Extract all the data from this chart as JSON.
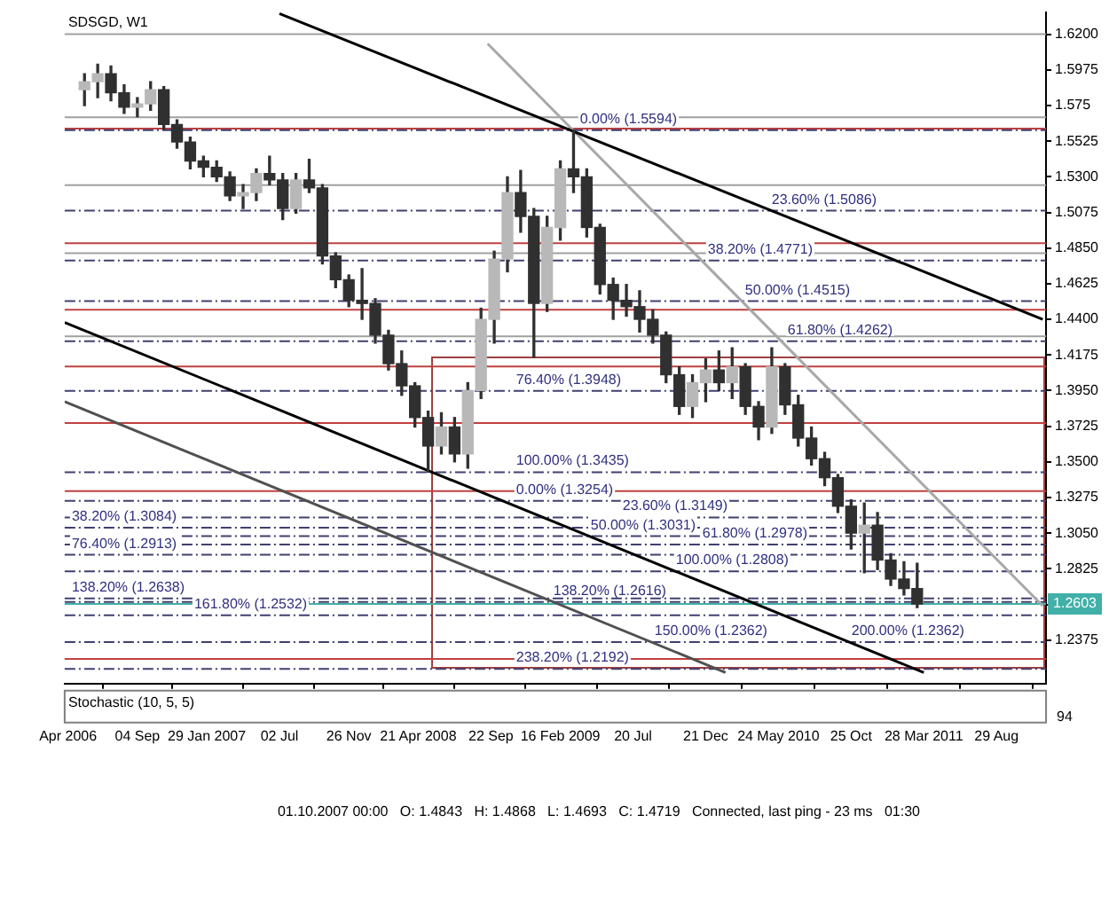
{
  "chart_data": {
    "type": "candlestick",
    "title": "SDSGD, W1",
    "x": [
      "2006-05-15",
      "2006-06-12",
      "2006-07-10",
      "2006-08-07",
      "2006-09-04",
      "2006-10-02",
      "2006-10-30",
      "2006-11-27",
      "2006-12-25",
      "2007-01-22",
      "2007-02-19",
      "2007-03-19",
      "2007-04-16",
      "2007-05-14",
      "2007-06-11",
      "2007-07-09",
      "2007-08-06",
      "2007-09-03",
      "2007-10-01",
      "2007-10-29",
      "2007-11-26",
      "2007-12-24",
      "2008-01-21",
      "2008-02-18",
      "2008-03-17",
      "2008-04-14",
      "2008-05-12",
      "2008-06-09",
      "2008-07-07",
      "2008-08-04",
      "2008-09-01",
      "2008-09-29",
      "2008-10-27",
      "2008-11-24",
      "2008-12-22",
      "2009-01-19",
      "2009-02-16",
      "2009-03-16",
      "2009-04-13",
      "2009-05-11",
      "2009-06-08",
      "2009-07-06",
      "2009-08-03",
      "2009-08-31",
      "2009-09-28",
      "2009-10-26",
      "2009-11-23",
      "2009-12-21",
      "2010-01-18",
      "2010-02-15",
      "2010-03-15",
      "2010-04-12",
      "2010-05-10",
      "2010-06-07",
      "2010-07-05",
      "2010-08-02",
      "2010-08-30",
      "2010-09-27",
      "2010-10-25",
      "2010-11-22",
      "2010-12-20",
      "2011-01-17",
      "2011-02-14",
      "2011-03-14"
    ],
    "ohlc": [
      [
        1.585,
        1.595,
        1.575,
        1.59
      ],
      [
        1.59,
        1.601,
        1.58,
        1.595
      ],
      [
        1.595,
        1.6,
        1.578,
        1.583
      ],
      [
        1.583,
        1.588,
        1.57,
        1.574
      ],
      [
        1.574,
        1.58,
        1.568,
        1.576
      ],
      [
        1.576,
        1.59,
        1.572,
        1.585
      ],
      [
        1.585,
        1.587,
        1.56,
        1.563
      ],
      [
        1.563,
        1.566,
        1.548,
        1.552
      ],
      [
        1.552,
        1.555,
        1.535,
        1.54
      ],
      [
        1.54,
        1.543,
        1.53,
        1.536
      ],
      [
        1.536,
        1.54,
        1.527,
        1.53
      ],
      [
        1.53,
        1.533,
        1.515,
        1.518
      ],
      [
        1.518,
        1.525,
        1.51,
        1.52
      ],
      [
        1.52,
        1.535,
        1.515,
        1.532
      ],
      [
        1.532,
        1.543,
        1.525,
        1.528
      ],
      [
        1.528,
        1.532,
        1.503,
        1.51
      ],
      [
        1.51,
        1.532,
        1.507,
        1.528
      ],
      [
        1.528,
        1.541,
        1.52,
        1.523
      ],
      [
        1.523,
        1.525,
        1.475,
        1.48
      ],
      [
        1.48,
        1.482,
        1.46,
        1.465
      ],
      [
        1.465,
        1.468,
        1.448,
        1.452
      ],
      [
        1.452,
        1.472,
        1.44,
        1.45
      ],
      [
        1.45,
        1.453,
        1.425,
        1.43
      ],
      [
        1.43,
        1.433,
        1.408,
        1.412
      ],
      [
        1.412,
        1.42,
        1.392,
        1.398
      ],
      [
        1.398,
        1.4,
        1.372,
        1.378
      ],
      [
        1.378,
        1.382,
        1.3435,
        1.36
      ],
      [
        1.36,
        1.381,
        1.355,
        1.372
      ],
      [
        1.372,
        1.378,
        1.35,
        1.355
      ],
      [
        1.355,
        1.4,
        1.346,
        1.395
      ],
      [
        1.395,
        1.447,
        1.39,
        1.44
      ],
      [
        1.44,
        1.483,
        1.425,
        1.478
      ],
      [
        1.478,
        1.53,
        1.47,
        1.52
      ],
      [
        1.52,
        1.534,
        1.495,
        1.505
      ],
      [
        1.505,
        1.51,
        1.416,
        1.45
      ],
      [
        1.45,
        1.505,
        1.445,
        1.498
      ],
      [
        1.498,
        1.54,
        1.49,
        1.535
      ],
      [
        1.535,
        1.5594,
        1.52,
        1.53
      ],
      [
        1.53,
        1.535,
        1.492,
        1.498
      ],
      [
        1.498,
        1.5,
        1.456,
        1.462
      ],
      [
        1.462,
        1.466,
        1.44,
        1.452
      ],
      [
        1.452,
        1.462,
        1.442,
        1.448
      ],
      [
        1.448,
        1.458,
        1.432,
        1.44
      ],
      [
        1.44,
        1.446,
        1.425,
        1.43
      ],
      [
        1.43,
        1.432,
        1.4,
        1.405
      ],
      [
        1.405,
        1.41,
        1.38,
        1.385
      ],
      [
        1.385,
        1.405,
        1.378,
        1.4
      ],
      [
        1.4,
        1.415,
        1.388,
        1.408
      ],
      [
        1.408,
        1.42,
        1.395,
        1.4
      ],
      [
        1.4,
        1.422,
        1.39,
        1.41
      ],
      [
        1.41,
        1.412,
        1.38,
        1.385
      ],
      [
        1.385,
        1.388,
        1.364,
        1.372
      ],
      [
        1.372,
        1.422,
        1.368,
        1.41
      ],
      [
        1.41,
        1.412,
        1.38,
        1.386
      ],
      [
        1.386,
        1.392,
        1.36,
        1.365
      ],
      [
        1.365,
        1.372,
        1.348,
        1.352
      ],
      [
        1.352,
        1.356,
        1.335,
        1.34
      ],
      [
        1.34,
        1.342,
        1.318,
        1.322
      ],
      [
        1.322,
        1.326,
        1.295,
        1.305
      ],
      [
        1.305,
        1.324,
        1.28,
        1.31
      ],
      [
        1.31,
        1.318,
        1.282,
        1.288
      ],
      [
        1.288,
        1.292,
        1.272,
        1.276
      ],
      [
        1.276,
        1.287,
        1.266,
        1.27
      ],
      [
        1.27,
        1.286,
        1.258,
        1.2603
      ]
    ],
    "color": "#303030",
    "colors": [
      "#b8b8b8",
      "#b8b8b8",
      "#303030",
      "#303030",
      "#b8b8b8",
      "#b8b8b8",
      "#303030",
      "#303030",
      "#303030",
      "#303030",
      "#303030",
      "#303030",
      "#b8b8b8",
      "#b8b8b8",
      "#303030",
      "#303030",
      "#b8b8b8",
      "#303030",
      "#303030",
      "#303030",
      "#303030",
      "#303030",
      "#303030",
      "#303030",
      "#303030",
      "#303030",
      "#303030",
      "#b8b8b8",
      "#303030",
      "#b8b8b8",
      "#b8b8b8",
      "#b8b8b8",
      "#b8b8b8",
      "#303030",
      "#303030",
      "#b8b8b8",
      "#b8b8b8",
      "#303030",
      "#303030",
      "#303030",
      "#303030",
      "#303030",
      "#303030",
      "#303030",
      "#303030",
      "#303030",
      "#b8b8b8",
      "#b8b8b8",
      "#303030",
      "#b8b8b8",
      "#303030",
      "#303030",
      "#b8b8b8",
      "#303030",
      "#303030",
      "#303030",
      "#303030",
      "#303030",
      "#303030",
      "#b8b8b8",
      "#303030",
      "#303030",
      "#303030",
      "#303030"
    ],
    "series": [
      {
        "type": "line",
        "color": "#000000",
        "x": [
          "2007-07-02",
          "2011-12-05"
        ],
        "values": [
          1.633,
          1.44
        ]
      },
      {
        "type": "line",
        "color": "#000000",
        "x": [
          "2006-04-03",
          "2011-03-28"
        ],
        "values": [
          1.438,
          1.217
        ]
      },
      {
        "type": "line",
        "color": "#505050",
        "x": [
          "2006-04-03",
          "2010-02-01"
        ],
        "values": [
          1.388,
          1.217
        ]
      },
      {
        "type": "line",
        "color": "#a8a8a8",
        "x": [
          "2008-09-15",
          "2011-12-05"
        ],
        "values": [
          1.614,
          1.259
        ]
      }
    ],
    "xlim": [
      "2006-04-03",
      "2011-12-12"
    ],
    "xticks": [
      {
        "value": "2006-04-10",
        "label": "Apr 2006"
      },
      {
        "value": "2006-09-04",
        "label": "04 Sep"
      },
      {
        "value": "2007-01-29",
        "label": "29 Jan 2007"
      },
      {
        "value": "2007-07-02",
        "label": "02 Jul"
      },
      {
        "value": "2007-11-26",
        "label": "26 Nov"
      },
      {
        "value": "2008-04-21",
        "label": "21 Apr 2008"
      },
      {
        "value": "2008-09-22",
        "label": "22 Sep"
      },
      {
        "value": "2009-02-16",
        "label": "16 Feb 2009"
      },
      {
        "value": "2009-07-20",
        "label": "20 Jul"
      },
      {
        "value": "2009-12-21",
        "label": "21 Dec"
      },
      {
        "value": "2010-05-24",
        "label": "24 May 2010"
      },
      {
        "value": "2010-10-25",
        "label": "25 Oct"
      },
      {
        "value": "2011-03-28",
        "label": "28 Mar 2011"
      },
      {
        "value": "2011-08-29",
        "label": "29 Aug"
      }
    ],
    "ylim": [
      1.21,
      1.634
    ],
    "yticks": [
      1.2375,
      {
        "value": 1.26,
        "label": null
      },
      1.2825,
      {
        "value": 1.305,
        "label": "1.3050"
      },
      1.3275,
      {
        "value": 1.35,
        "label": "1.3500"
      },
      1.3725,
      {
        "value": 1.395,
        "label": "1.3950"
      },
      1.4175,
      {
        "value": 1.44,
        "label": "1.4400"
      },
      1.4625,
      {
        "value": 1.485,
        "label": "1.4850"
      },
      1.5075,
      {
        "value": 1.53,
        "label": "1.5300"
      },
      1.5525,
      1.575,
      1.5975,
      {
        "value": 1.62,
        "label": "1.6200"
      }
    ],
    "ref_lines": [
      {
        "axis": "y",
        "value": 1.62,
        "color": "#a0a0a0"
      },
      {
        "axis": "y",
        "value": 1.5676,
        "color": "#a0a0a0"
      },
      {
        "axis": "y",
        "value": 1.5604,
        "color": "#c04040"
      },
      {
        "axis": "y",
        "value": 1.5247,
        "color": "#a0a0a0"
      },
      {
        "axis": "y",
        "value": 1.488,
        "color": "#c04040"
      },
      {
        "axis": "y",
        "value": 1.4817,
        "color": "#a0a0a0"
      },
      {
        "axis": "y",
        "value": 1.446,
        "color": "#c04040"
      },
      {
        "axis": "y",
        "value": 1.4293,
        "color": "#a0a0a0"
      },
      {
        "axis": "y",
        "value": 1.4102,
        "color": "#c04040"
      },
      {
        "axis": "y",
        "value": 1.3745,
        "color": "#c04040"
      },
      {
        "axis": "y",
        "value": 1.3315,
        "color": "#c04040"
      },
      {
        "axis": "y",
        "value": 1.2255,
        "color": "#c04040"
      },
      {
        "axis": "y",
        "value": 1.2603,
        "label": "1.2603",
        "color": "#40b0a8"
      },
      {
        "axis": "y",
        "value": 1.5594,
        "label": "0.00% (1.5594)",
        "color": "#404070",
        "line_style": "dashed"
      },
      {
        "axis": "y",
        "value": 1.5086,
        "label": "23.60% (1.5086)",
        "color": "#404070",
        "line_style": "dashed"
      },
      {
        "axis": "y",
        "value": 1.4771,
        "label": "38.20% (1.4771)",
        "color": "#404070",
        "line_style": "dashed"
      },
      {
        "axis": "y",
        "value": 1.4515,
        "label": "50.00% (1.4515)",
        "color": "#404070",
        "line_style": "dashed"
      },
      {
        "axis": "y",
        "value": 1.4262,
        "label": "61.80% (1.4262)",
        "color": "#404070",
        "line_style": "dashed"
      },
      {
        "axis": "y",
        "value": 1.3948,
        "label": "76.40% (1.3948)",
        "color": "#404070",
        "line_style": "dashed"
      },
      {
        "axis": "y",
        "value": 1.3435,
        "label": "100.00% (1.3435)",
        "color": "#404070",
        "line_style": "dashed"
      },
      {
        "axis": "y",
        "value": 1.2616,
        "label": "138.20% (1.2616)",
        "color": "#404070",
        "line_style": "dashed"
      },
      {
        "axis": "y",
        "value": 1.2362,
        "label": "150.00% (1.2362)",
        "color": "#404070",
        "line_style": "dashed"
      },
      {
        "axis": "y",
        "value": 1.3254,
        "label": "0.00% (1.3254)",
        "color": "#404070",
        "line_style": "dashed"
      },
      {
        "axis": "y",
        "value": 1.3149,
        "label": "23.60% (1.3149)",
        "color": "#404070",
        "line_style": "dashed"
      },
      {
        "axis": "y",
        "value": 1.3084,
        "label": "38.20% (1.3084)",
        "color": "#404070",
        "line_style": "dashed"
      },
      {
        "axis": "y",
        "value": 1.3031,
        "label": "50.00% (1.3031)",
        "color": "#404070",
        "line_style": "dashed"
      },
      {
        "axis": "y",
        "value": 1.2978,
        "label": "61.80% (1.2978)",
        "color": "#404070",
        "line_style": "dashed"
      },
      {
        "axis": "y",
        "value": 1.2913,
        "label": "76.40% (1.2913)",
        "color": "#404070",
        "line_style": "dashed"
      },
      {
        "axis": "y",
        "value": 1.2808,
        "label": "100.00% (1.2808)",
        "color": "#404070",
        "line_style": "dashed"
      },
      {
        "axis": "y",
        "value": 1.2638,
        "label": "138.20% (1.2638)",
        "color": "#404070",
        "line_style": "dashed"
      },
      {
        "axis": "y",
        "value": 1.2532,
        "label": "161.80% (1.2532)",
        "color": "#404070",
        "line_style": "dashed"
      },
      {
        "axis": "y",
        "value": 1.2192,
        "label": "238.20% (1.2192)",
        "color": "#404070",
        "line_style": "dashed"
      }
    ],
    "annotations": [
      {
        "text": "200.00% (1.2362)",
        "y": 1.2362
      },
      "Stochastic (10, 5, 5)",
      "94",
      "01.10.2007 00:00   O: 1.4843   H: 1.4868   L: 1.4693   C: 1.4719   Connected, last ping - 23 ms   01:30"
    ]
  }
}
